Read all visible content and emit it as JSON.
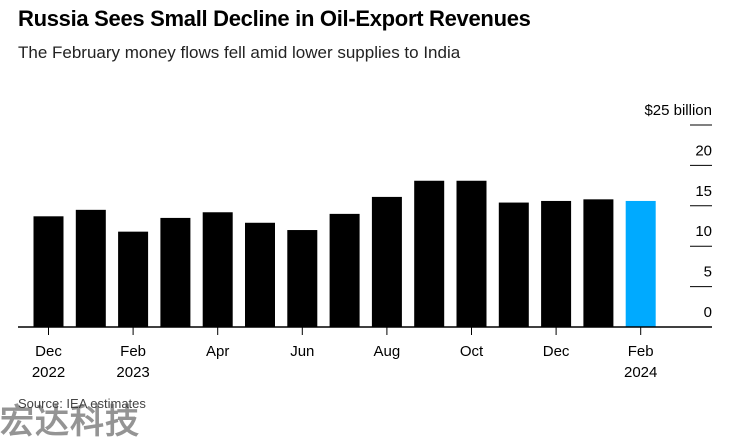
{
  "title": "Russia Sees Small Decline in Oil-Export Revenues",
  "subtitle": "The February money flows fell amid lower supplies to India",
  "source": "Source: IEA estimates",
  "watermark": "宏达科技",
  "colors": {
    "bar": "#000000",
    "highlight": "#00aaff",
    "gridline": "#000000"
  },
  "chart_data": {
    "type": "bar",
    "unit": "$ billion",
    "categories": [
      "Dec 2022",
      "Jan 2023",
      "Feb 2023",
      "Mar 2023",
      "Apr 2023",
      "May 2023",
      "Jun 2023",
      "Jul 2023",
      "Aug 2023",
      "Sep 2023",
      "Oct 2023",
      "Nov 2023",
      "Dec 2023",
      "Jan 2024",
      "Feb 2024"
    ],
    "values": [
      13.7,
      14.5,
      11.8,
      13.5,
      14.2,
      12.9,
      12.0,
      14.0,
      16.1,
      18.1,
      18.1,
      15.4,
      15.6,
      15.8,
      15.6
    ],
    "highlight_index": 14,
    "ylim": [
      0,
      25
    ],
    "yticks": [
      {
        "value": 25,
        "label": "$25 billion"
      },
      {
        "value": 20,
        "label": "20"
      },
      {
        "value": 15,
        "label": "15"
      },
      {
        "value": 10,
        "label": "10"
      },
      {
        "value": 5,
        "label": "5"
      },
      {
        "value": 0,
        "label": "0"
      }
    ],
    "xticks": [
      {
        "index": 0,
        "line1": "Dec",
        "line2": "2022"
      },
      {
        "index": 2,
        "line1": "Feb",
        "line2": "2023"
      },
      {
        "index": 4,
        "line1": "Apr",
        "line2": ""
      },
      {
        "index": 6,
        "line1": "Jun",
        "line2": ""
      },
      {
        "index": 8,
        "line1": "Aug",
        "line2": ""
      },
      {
        "index": 10,
        "line1": "Oct",
        "line2": ""
      },
      {
        "index": 12,
        "line1": "Dec",
        "line2": ""
      },
      {
        "index": 14,
        "line1": "Feb",
        "line2": "2024"
      }
    ],
    "grid": true,
    "yaxis_side": "right"
  }
}
